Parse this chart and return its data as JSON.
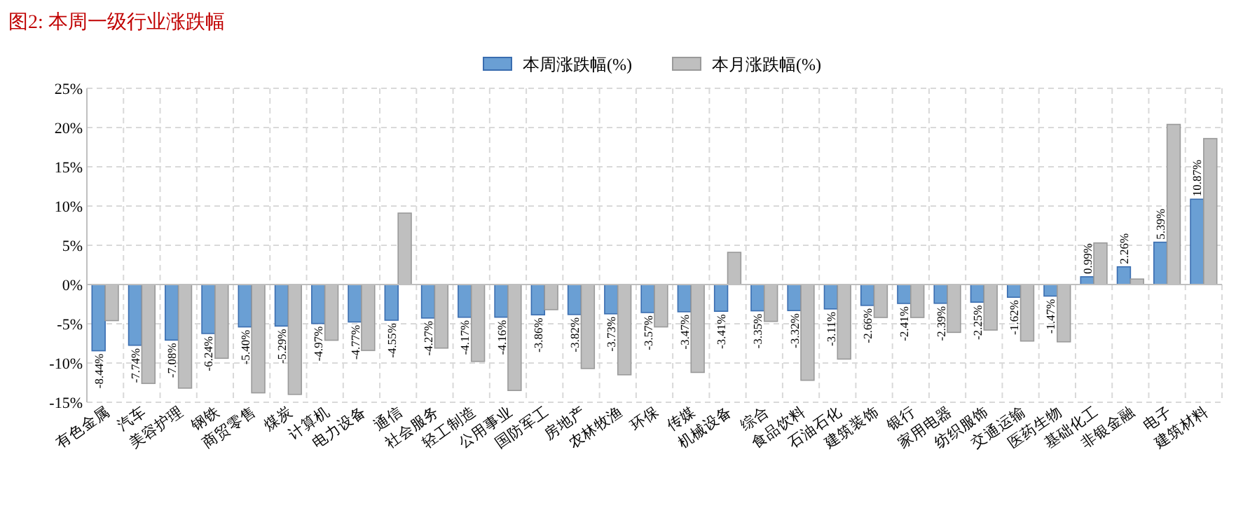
{
  "chart_data": {
    "type": "bar",
    "title": "图2:   本周一级行业涨跌幅",
    "categories": [
      "有色金属",
      "汽车",
      "美容护理",
      "钢铁",
      "商贸零售",
      "煤炭",
      "计算机",
      "电力设备",
      "通信",
      "社会服务",
      "轻工制造",
      "公用事业",
      "国防军工",
      "房地产",
      "农林牧渔",
      "环保",
      "传媒",
      "机械设备",
      "综合",
      "食品饮料",
      "石油石化",
      "建筑装饰",
      "银行",
      "家用电器",
      "纺织服饰",
      "交通运输",
      "医药生物",
      "基础化工",
      "非银金融",
      "电子",
      "建筑材料"
    ],
    "series": [
      {
        "name": "本周涨跌幅(%)",
        "color": "#6a9fd4",
        "value_labels": [
          "-8.44%",
          "-7.74%",
          "-7.08%",
          "-6.24%",
          "-5.40%",
          "-5.29%",
          "-4.97%",
          "-4.77%",
          "-4.55%",
          "-4.27%",
          "-4.17%",
          "-4.16%",
          "-3.86%",
          "-3.82%",
          "-3.73%",
          "-3.57%",
          "-3.47%",
          "-3.41%",
          "-3.35%",
          "-3.32%",
          "-3.11%",
          "-2.66%",
          "-2.41%",
          "-2.39%",
          "-2.25%",
          "-1.62%",
          "-1.47%",
          "0.99%",
          "2.26%",
          "5.39%",
          "10.87%"
        ],
        "values": [
          -8.44,
          -7.74,
          -7.08,
          -6.24,
          -5.4,
          -5.29,
          -4.97,
          -4.77,
          -4.55,
          -4.27,
          -4.17,
          -4.16,
          -3.86,
          -3.82,
          -3.73,
          -3.57,
          -3.47,
          -3.41,
          -3.35,
          -3.32,
          -3.11,
          -2.66,
          -2.41,
          -2.39,
          -2.25,
          -1.62,
          -1.47,
          0.99,
          2.26,
          5.39,
          10.87
        ]
      },
      {
        "name": "本月涨跌幅(%)",
        "color": "#bfbfbf",
        "values": [
          -4.6,
          -12.6,
          -13.2,
          -9.4,
          -13.8,
          -14.0,
          -7.1,
          -8.4,
          9.1,
          -8.1,
          -9.8,
          -13.5,
          -3.2,
          -10.7,
          -11.5,
          -5.4,
          -11.2,
          4.1,
          -4.7,
          -12.2,
          -9.5,
          -4.2,
          -4.2,
          -6.1,
          -5.8,
          -7.2,
          -7.3,
          5.3,
          0.7,
          20.4,
          18.6
        ]
      }
    ],
    "ylim": [
      -15,
      25
    ],
    "yticks": [
      {
        "value": -15,
        "label": "-15%"
      },
      {
        "value": -10,
        "label": "-10%"
      },
      {
        "value": -5,
        "label": "-5%"
      },
      {
        "value": 0,
        "label": "0%"
      },
      {
        "value": 5,
        "label": "5%"
      },
      {
        "value": 10,
        "label": "10%"
      },
      {
        "value": 15,
        "label": "15%"
      },
      {
        "value": 20,
        "label": "20%"
      },
      {
        "value": 25,
        "label": "25%"
      }
    ],
    "grid": true,
    "legend": "top"
  }
}
